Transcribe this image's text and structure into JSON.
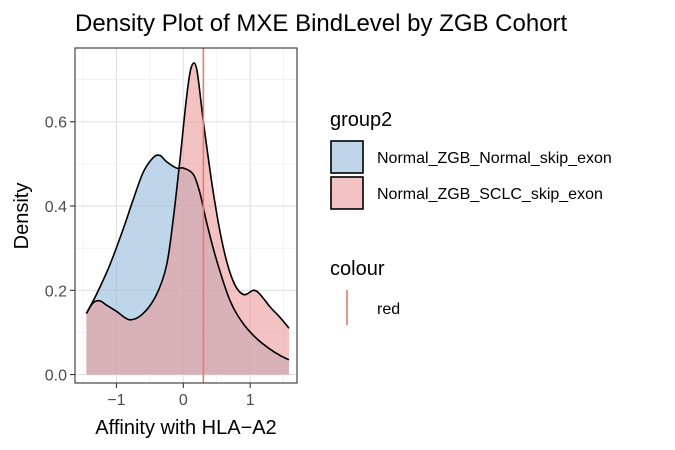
{
  "chart_data": {
    "type": "area",
    "title": "Density Plot of MXE BindLevel by ZGB Cohort",
    "xlabel": "Affinity with HLA−A2",
    "ylabel": "Density",
    "xlim": [
      -1.62,
      1.7
    ],
    "ylim": [
      -0.02,
      0.775
    ],
    "x_ticks": [
      -1,
      0,
      1
    ],
    "x_tick_labels": [
      "−1",
      "0",
      "1"
    ],
    "y_ticks": [
      0.0,
      0.2,
      0.4,
      0.6
    ],
    "y_tick_labels": [
      "0.0",
      "0.2",
      "0.4",
      "0.6"
    ],
    "grid": true,
    "legend_placement": "right",
    "legend": {
      "fill_title": "group2",
      "colour_title": "colour",
      "colour_entry": "red"
    },
    "series": [
      {
        "name": "Normal_ZGB_Normal_skip_exon",
        "fill": "#94b9db",
        "x": [
          -1.45,
          -1.3,
          -1.1,
          -0.9,
          -0.75,
          -0.6,
          -0.45,
          -0.35,
          -0.25,
          -0.1,
          0.0,
          0.15,
          0.25,
          0.35,
          0.5,
          0.7,
          0.9,
          1.1,
          1.3,
          1.45,
          1.58
        ],
        "y": [
          0.145,
          0.19,
          0.26,
          0.345,
          0.415,
          0.48,
          0.515,
          0.52,
          0.505,
          0.49,
          0.49,
          0.475,
          0.43,
          0.36,
          0.27,
          0.175,
          0.12,
          0.085,
          0.06,
          0.045,
          0.035
        ]
      },
      {
        "name": "Normal_ZGB_SCLC_skip_exon",
        "fill": "#eb9a9a",
        "x": [
          -1.45,
          -1.35,
          -1.25,
          -1.15,
          -1.0,
          -0.8,
          -0.6,
          -0.4,
          -0.25,
          -0.15,
          -0.05,
          0.05,
          0.12,
          0.2,
          0.3,
          0.45,
          0.6,
          0.75,
          0.9,
          1.05,
          1.15,
          1.3,
          1.45,
          1.58
        ],
        "y": [
          0.145,
          0.17,
          0.175,
          0.165,
          0.15,
          0.13,
          0.145,
          0.19,
          0.26,
          0.37,
          0.51,
          0.66,
          0.73,
          0.725,
          0.6,
          0.43,
          0.3,
          0.22,
          0.19,
          0.2,
          0.19,
          0.16,
          0.135,
          0.11
        ]
      }
    ],
    "vline": {
      "x": 0.3,
      "color": "#e87a70",
      "label": "red"
    }
  }
}
